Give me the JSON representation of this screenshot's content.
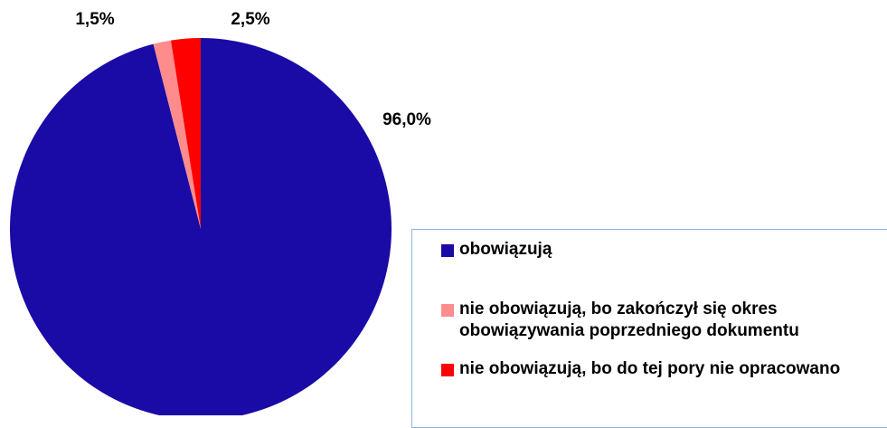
{
  "chart_data": {
    "type": "pie",
    "categories": [
      "obowiązują",
      "nie obowiązują, bo zakończył się okres obowiązywania poprzedniego dokumentu",
      "nie obowiązują, bo do tej pory nie opracowano"
    ],
    "values": [
      96.0,
      1.5,
      2.5
    ],
    "value_labels": [
      "96,0%",
      "1,5%",
      "2,5%"
    ],
    "colors": [
      "#1a0aa6",
      "#ff8c8c",
      "#ff0000"
    ]
  }
}
